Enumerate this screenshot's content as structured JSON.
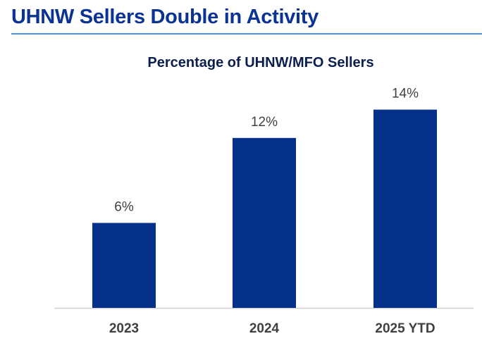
{
  "header": {
    "title": "UHNW Sellers Double in Activity"
  },
  "colors": {
    "title": "#0a3394",
    "rule": "#4a90e2",
    "bar": "#05318a",
    "subtitle": "#0b1f4f",
    "label": "#404040",
    "axis": "#d0d0d0"
  },
  "chart_data": {
    "type": "bar",
    "title": "Percentage of UHNW/MFO Sellers",
    "categories": [
      "2023",
      "2024",
      "2025 YTD"
    ],
    "values": [
      6,
      12,
      14
    ],
    "data_labels": [
      "6%",
      "12%",
      "14%"
    ],
    "xlabel": "",
    "ylabel": "",
    "ylim": [
      0,
      14
    ],
    "grid": false,
    "legend": "none"
  }
}
